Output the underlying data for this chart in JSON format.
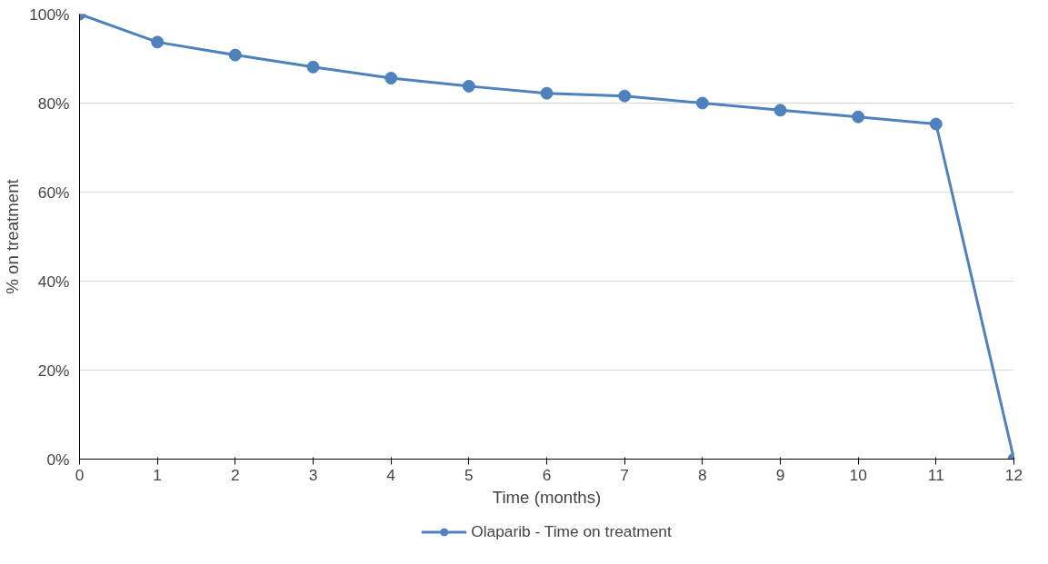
{
  "chart_data": {
    "type": "line",
    "xlabel": "Time (months)",
    "ylabel": "% on treatment",
    "x": [
      0,
      1,
      2,
      3,
      4,
      5,
      6,
      7,
      8,
      9,
      10,
      11,
      12
    ],
    "series": [
      {
        "name": "Olaparib - Time on treatment",
        "color": "#4f81bd",
        "values": [
          100,
          93.7,
          90.8,
          88.1,
          85.6,
          83.8,
          82.2,
          81.6,
          80.0,
          78.4,
          76.9,
          75.3,
          0
        ]
      }
    ],
    "xlim": [
      0,
      12
    ],
    "xticks": [
      0,
      1,
      2,
      3,
      4,
      5,
      6,
      7,
      8,
      9,
      10,
      11,
      12
    ],
    "ylim": [
      0,
      100
    ],
    "yticks": [
      {
        "value": 0,
        "label": "0%"
      },
      {
        "value": 20,
        "label": "20%"
      },
      {
        "value": 40,
        "label": "40%"
      },
      {
        "value": 60,
        "label": "60%"
      },
      {
        "value": 80,
        "label": "80%"
      },
      {
        "value": 100,
        "label": "100%"
      }
    ],
    "grid": "y",
    "legend": "bottom",
    "marker": "circle",
    "line_style": "solid"
  }
}
